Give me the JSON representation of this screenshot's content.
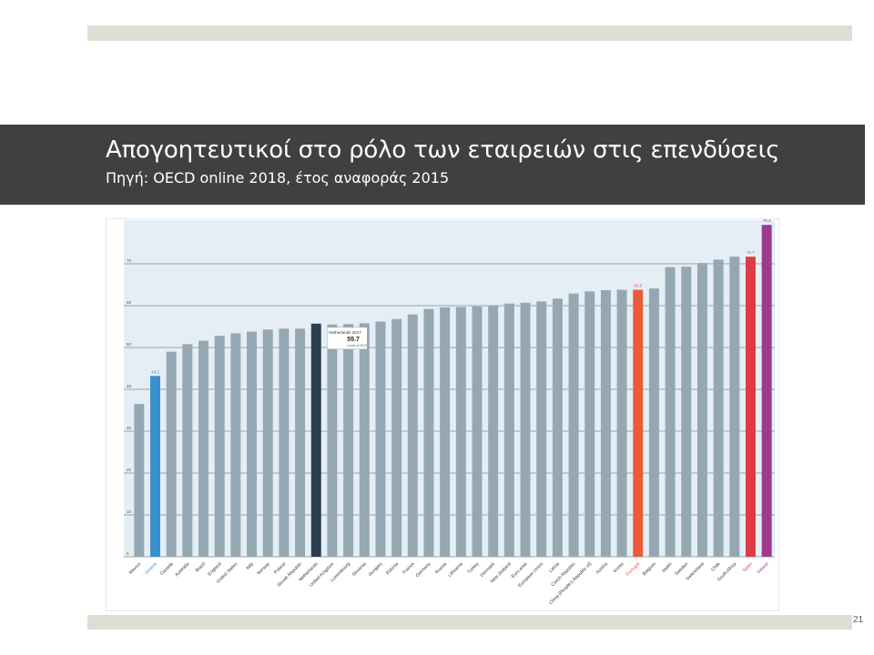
{
  "slide": {
    "title": "Απογοητευτικοί στο ρόλο των εταιρειών στις επενδύσεις",
    "subtitle": "Πηγή: OECD online 2018, έτος αναφοράς 2015",
    "page_number": "21"
  },
  "colors": {
    "default_bar": "#95a7b2",
    "greece": "#3a8fd0",
    "netherlands": "#2c3e50",
    "portugal": "#ea5b3a",
    "spain": "#dc3c44",
    "ireland": "#9b3a8e",
    "plot_background": "#e4eef4",
    "gridline": "#7f8c96"
  },
  "chart_data": {
    "type": "bar",
    "categories": [
      "Mexico",
      "Greece",
      "Canada",
      "Australia",
      "Brazil",
      "England",
      "United States",
      "Italy",
      "Norway",
      "Poland",
      "Slovak Republic",
      "Netherlands",
      "United Kingdom",
      "Luxembourg",
      "Slovenia",
      "Hungary",
      "Estonia",
      "France",
      "Germany",
      "Russia",
      "Lithuania",
      "Turkey",
      "Denmark",
      "New Zealand",
      "Euro area",
      "European Union",
      "Latvia",
      "Czech Republic",
      "China (People's Republic of)",
      "Austria",
      "Korea",
      "Portugal",
      "Belgium",
      "Japan",
      "Sweden",
      "Switzerland",
      "Chile",
      "South Africa",
      "Spain",
      "Ireland"
    ],
    "values": [
      36.5,
      43.2,
      49.0,
      50.8,
      51.6,
      52.8,
      53.4,
      53.8,
      54.3,
      54.5,
      54.5,
      55.7,
      55.5,
      55.6,
      55.8,
      56.2,
      56.8,
      57.9,
      59.2,
      59.6,
      59.7,
      59.8,
      60.0,
      60.5,
      60.7,
      61.0,
      61.7,
      62.9,
      63.4,
      63.7,
      63.8,
      63.8,
      64.1,
      69.2,
      69.3,
      70.2,
      71.0,
      71.7,
      71.7,
      79.3
    ],
    "highlights": {
      "Greece": "greece",
      "Netherlands": "netherlands",
      "Portugal": "portugal",
      "Spain": "spain",
      "Ireland": "ireland"
    },
    "data_labels": [
      {
        "category": "Greece",
        "text": "43.2"
      },
      {
        "category": "Portugal",
        "text": "63.8"
      },
      {
        "category": "Spain",
        "text": "71.7"
      },
      {
        "category": "Ireland",
        "text": "79.3"
      }
    ],
    "annotation": {
      "category": "Netherlands",
      "line1": "Netherlands 2017",
      "value": "55.7",
      "line2": "Level of SCF"
    },
    "yticks": [
      0,
      10,
      20,
      30,
      40,
      50,
      60,
      70
    ],
    "ylim": [
      0,
      80
    ],
    "grid": true,
    "xlabel": "",
    "ylabel": ""
  }
}
